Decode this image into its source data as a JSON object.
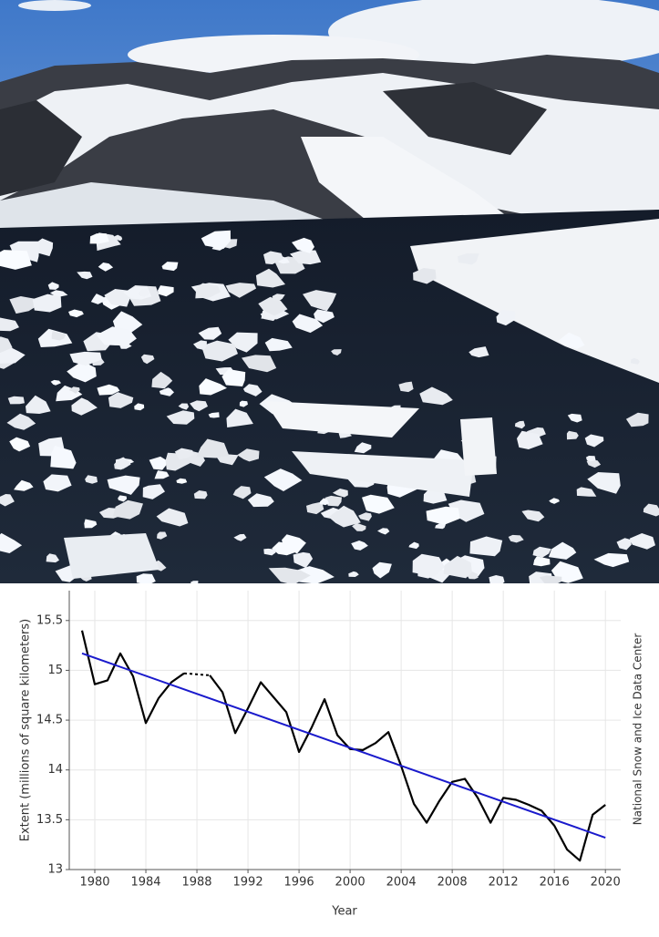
{
  "chart_data": {
    "type": "line",
    "x_label": "Year",
    "y_label": "Extent (millions of square kilometers)",
    "source": "National Snow and Ice Data Center",
    "x": [
      1979,
      1980,
      1981,
      1982,
      1983,
      1984,
      1985,
      1986,
      1987,
      1988,
      1989,
      1990,
      1991,
      1992,
      1993,
      1994,
      1995,
      1996,
      1997,
      1998,
      1999,
      2000,
      2001,
      2002,
      2003,
      2004,
      2005,
      2006,
      2007,
      2008,
      2009,
      2010,
      2011,
      2012,
      2013,
      2014,
      2015,
      2016,
      2017,
      2018,
      2019,
      2020
    ],
    "series": [
      {
        "color": "#000000",
        "values": [
          15.4,
          14.86,
          14.9,
          15.17,
          14.94,
          14.47,
          14.72,
          14.88,
          14.97,
          null,
          14.95,
          14.78,
          14.37,
          14.62,
          14.88,
          14.73,
          14.58,
          14.18,
          14.43,
          14.71,
          14.35,
          14.21,
          14.2,
          14.27,
          14.38,
          14.04,
          13.66,
          13.47,
          13.69,
          13.88,
          13.91,
          13.72,
          13.47,
          13.72,
          13.7,
          13.65,
          13.59,
          13.44,
          13.2,
          13.09,
          13.55,
          13.65
        ]
      }
    ],
    "trend": {
      "color": "#1a1acc",
      "x": [
        1979,
        2020
      ],
      "values": [
        15.17,
        13.32
      ]
    },
    "xlim": [
      1978,
      2021.2
    ],
    "ylim": [
      13,
      15.8
    ],
    "xticks": [
      1980,
      1984,
      1988,
      1992,
      1996,
      2000,
      2004,
      2008,
      2012,
      2016,
      2020
    ],
    "yticks": [
      13,
      13.5,
      14,
      14.5,
      15,
      15.5
    ],
    "grid": true
  }
}
